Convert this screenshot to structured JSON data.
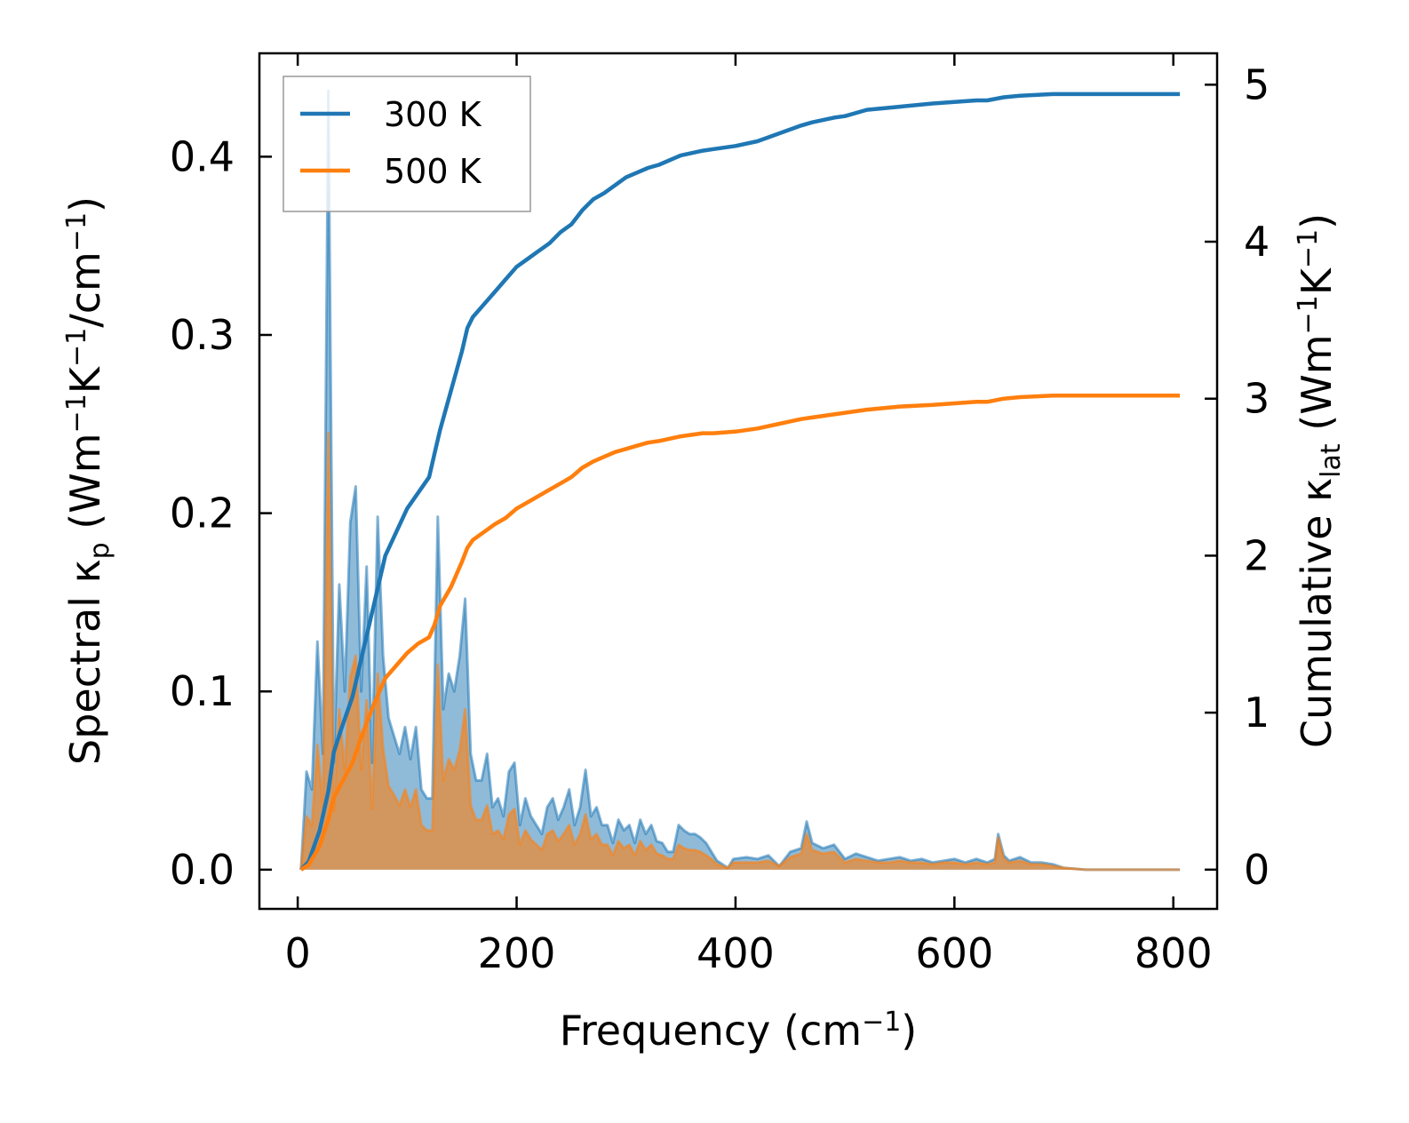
{
  "chart_data": {
    "type": "line",
    "title": "",
    "xlabel": {
      "main": "Frequency (cm",
      "sup": "−1",
      "tail": ")"
    },
    "ylabel_left": {
      "parts": [
        {
          "t": "Spectral κ"
        },
        {
          "t": "p",
          "sub": true
        },
        {
          "t": " (Wm"
        },
        {
          "t": "−1",
          "sup": true
        },
        {
          "t": "K"
        },
        {
          "t": "−1",
          "sup": true
        },
        {
          "t": "/cm"
        },
        {
          "t": "−1",
          "sup": true
        },
        {
          "t": ")"
        }
      ]
    },
    "ylabel_right": {
      "parts": [
        {
          "t": "Cumulative κ"
        },
        {
          "t": "lat",
          "sub": true
        },
        {
          "t": " (Wm"
        },
        {
          "t": "−1",
          "sup": true
        },
        {
          "t": "K"
        },
        {
          "t": "−1",
          "sup": true
        },
        {
          "t": ")"
        }
      ]
    },
    "xlim": [
      -35,
      840
    ],
    "ylim_left": [
      -0.022,
      0.458
    ],
    "ylim_right": [
      -0.25,
      5.2
    ],
    "xticks": [
      0,
      200,
      400,
      600,
      800
    ],
    "xtick_labels": [
      "0",
      "200",
      "400",
      "600",
      "800"
    ],
    "yticks_left": [
      0.0,
      0.1,
      0.2,
      0.3,
      0.4
    ],
    "ytick_labels_left": [
      "0.0",
      "0.1",
      "0.2",
      "0.3",
      "0.4"
    ],
    "yticks_right": [
      0,
      1,
      2,
      3,
      4,
      5
    ],
    "ytick_labels_right": [
      "0",
      "1",
      "2",
      "3",
      "4",
      "5"
    ],
    "legend": {
      "position": "top-left",
      "entries": [
        "300 K",
        "500 K"
      ]
    },
    "colors": {
      "s300": "#1f77b4",
      "s500": "#ff7f0e"
    },
    "series": [
      {
        "name": "300 K",
        "spectral": {
          "x": [
            3,
            8,
            13,
            18,
            23,
            28,
            33,
            38,
            43,
            48,
            53,
            58,
            63,
            68,
            73,
            78,
            83,
            88,
            93,
            98,
            103,
            108,
            113,
            118,
            123,
            128,
            133,
            138,
            143,
            148,
            153,
            158,
            163,
            168,
            173,
            178,
            183,
            188,
            193,
            198,
            203,
            208,
            213,
            218,
            223,
            228,
            233,
            238,
            243,
            248,
            253,
            258,
            263,
            268,
            273,
            278,
            283,
            288,
            293,
            298,
            303,
            308,
            313,
            318,
            323,
            328,
            333,
            338,
            343,
            348,
            353,
            358,
            363,
            368,
            373,
            378,
            383,
            388,
            393,
            398,
            410,
            420,
            430,
            440,
            450,
            460,
            465,
            470,
            480,
            490,
            500,
            510,
            520,
            530,
            540,
            550,
            560,
            570,
            580,
            590,
            600,
            610,
            620,
            630,
            637,
            640,
            645,
            650,
            660,
            670,
            680,
            690,
            700,
            720,
            750,
            780,
            806
          ],
          "y": [
            0.0,
            0.055,
            0.045,
            0.128,
            0.065,
            0.437,
            0.06,
            0.16,
            0.1,
            0.195,
            0.215,
            0.1,
            0.17,
            0.06,
            0.198,
            0.12,
            0.085,
            0.075,
            0.065,
            0.08,
            0.062,
            0.08,
            0.045,
            0.04,
            0.04,
            0.198,
            0.09,
            0.11,
            0.1,
            0.12,
            0.152,
            0.065,
            0.05,
            0.05,
            0.065,
            0.035,
            0.04,
            0.03,
            0.055,
            0.06,
            0.025,
            0.04,
            0.03,
            0.025,
            0.02,
            0.035,
            0.04,
            0.028,
            0.035,
            0.045,
            0.025,
            0.035,
            0.056,
            0.03,
            0.035,
            0.025,
            0.025,
            0.015,
            0.028,
            0.022,
            0.025,
            0.015,
            0.028,
            0.02,
            0.025,
            0.016,
            0.015,
            0.01,
            0.01,
            0.025,
            0.022,
            0.02,
            0.02,
            0.018,
            0.015,
            0.01,
            0.005,
            0.003,
            0.001,
            0.006,
            0.007,
            0.006,
            0.008,
            0.002,
            0.01,
            0.012,
            0.027,
            0.015,
            0.012,
            0.014,
            0.006,
            0.009,
            0.007,
            0.005,
            0.006,
            0.007,
            0.005,
            0.006,
            0.004,
            0.005,
            0.006,
            0.004,
            0.006,
            0.004,
            0.006,
            0.02,
            0.008,
            0.005,
            0.007,
            0.004,
            0.004,
            0.003,
            0.001,
            0.0,
            0.0,
            0.0,
            0.0
          ]
        },
        "cumulative": {
          "x": [
            3,
            10,
            20,
            28,
            33,
            40,
            50,
            60,
            70,
            80,
            90,
            100,
            110,
            120,
            125,
            130,
            140,
            150,
            155,
            160,
            170,
            180,
            190,
            200,
            210,
            220,
            230,
            240,
            250,
            260,
            270,
            280,
            290,
            300,
            310,
            320,
            330,
            350,
            370,
            380,
            400,
            420,
            440,
            460,
            470,
            490,
            500,
            520,
            550,
            580,
            600,
            620,
            630,
            645,
            660,
            690,
            700,
            806
          ],
          "y": [
            0.0,
            0.05,
            0.25,
            0.5,
            0.75,
            0.9,
            1.1,
            1.4,
            1.7,
            2.0,
            2.15,
            2.3,
            2.4,
            2.5,
            2.65,
            2.8,
            3.05,
            3.3,
            3.45,
            3.52,
            3.6,
            3.68,
            3.76,
            3.84,
            3.89,
            3.94,
            3.99,
            4.06,
            4.11,
            4.2,
            4.27,
            4.31,
            4.36,
            4.41,
            4.44,
            4.47,
            4.49,
            4.55,
            4.58,
            4.59,
            4.61,
            4.64,
            4.69,
            4.74,
            4.76,
            4.79,
            4.8,
            4.84,
            4.86,
            4.88,
            4.89,
            4.9,
            4.9,
            4.92,
            4.93,
            4.94,
            4.94,
            4.94
          ]
        }
      },
      {
        "name": "500 K",
        "spectral": {
          "x": [
            3,
            8,
            13,
            18,
            23,
            28,
            33,
            38,
            43,
            48,
            53,
            58,
            63,
            68,
            73,
            78,
            83,
            88,
            93,
            98,
            103,
            108,
            113,
            118,
            123,
            128,
            133,
            138,
            143,
            148,
            153,
            158,
            163,
            168,
            173,
            178,
            183,
            188,
            193,
            198,
            203,
            208,
            213,
            218,
            223,
            228,
            233,
            238,
            243,
            248,
            253,
            258,
            263,
            268,
            273,
            278,
            283,
            288,
            293,
            298,
            303,
            308,
            313,
            318,
            323,
            328,
            333,
            338,
            343,
            348,
            353,
            358,
            363,
            368,
            373,
            378,
            383,
            388,
            393,
            398,
            410,
            420,
            430,
            440,
            450,
            460,
            465,
            470,
            480,
            490,
            500,
            510,
            520,
            530,
            540,
            550,
            560,
            570,
            580,
            590,
            600,
            610,
            620,
            630,
            637,
            640,
            645,
            650,
            660,
            670,
            680,
            690,
            700,
            720,
            750,
            780,
            806
          ],
          "y": [
            0.0,
            0.03,
            0.025,
            0.07,
            0.035,
            0.245,
            0.033,
            0.09,
            0.056,
            0.108,
            0.12,
            0.056,
            0.095,
            0.034,
            0.11,
            0.068,
            0.047,
            0.042,
            0.036,
            0.045,
            0.035,
            0.045,
            0.025,
            0.022,
            0.022,
            0.115,
            0.05,
            0.062,
            0.056,
            0.067,
            0.09,
            0.036,
            0.028,
            0.028,
            0.036,
            0.02,
            0.022,
            0.017,
            0.031,
            0.034,
            0.014,
            0.022,
            0.017,
            0.014,
            0.011,
            0.02,
            0.022,
            0.016,
            0.02,
            0.025,
            0.014,
            0.02,
            0.031,
            0.017,
            0.02,
            0.014,
            0.014,
            0.008,
            0.016,
            0.012,
            0.014,
            0.008,
            0.016,
            0.011,
            0.014,
            0.009,
            0.008,
            0.006,
            0.006,
            0.014,
            0.012,
            0.011,
            0.011,
            0.01,
            0.008,
            0.006,
            0.003,
            0.002,
            0.001,
            0.004,
            0.004,
            0.004,
            0.005,
            0.002,
            0.007,
            0.009,
            0.02,
            0.011,
            0.009,
            0.01,
            0.004,
            0.006,
            0.005,
            0.004,
            0.004,
            0.005,
            0.004,
            0.004,
            0.003,
            0.004,
            0.004,
            0.003,
            0.004,
            0.003,
            0.004,
            0.018,
            0.006,
            0.004,
            0.005,
            0.003,
            0.003,
            0.002,
            0.001,
            0.0,
            0.0,
            0.0,
            0.0
          ]
        },
        "cumulative": {
          "x": [
            3,
            10,
            20,
            28,
            33,
            40,
            50,
            60,
            70,
            80,
            90,
            100,
            110,
            120,
            125,
            130,
            140,
            150,
            155,
            160,
            170,
            180,
            190,
            200,
            210,
            220,
            230,
            240,
            250,
            260,
            270,
            280,
            290,
            300,
            310,
            320,
            330,
            350,
            370,
            380,
            400,
            420,
            440,
            460,
            470,
            490,
            500,
            520,
            550,
            580,
            600,
            620,
            630,
            645,
            660,
            690,
            700,
            806
          ],
          "y": [
            0.0,
            0.03,
            0.15,
            0.32,
            0.46,
            0.55,
            0.68,
            0.88,
            1.06,
            1.22,
            1.3,
            1.38,
            1.44,
            1.48,
            1.56,
            1.68,
            1.8,
            1.96,
            2.05,
            2.1,
            2.15,
            2.2,
            2.24,
            2.3,
            2.34,
            2.38,
            2.42,
            2.46,
            2.5,
            2.56,
            2.6,
            2.63,
            2.66,
            2.68,
            2.7,
            2.72,
            2.73,
            2.76,
            2.78,
            2.78,
            2.79,
            2.81,
            2.84,
            2.87,
            2.88,
            2.9,
            2.91,
            2.93,
            2.95,
            2.96,
            2.97,
            2.98,
            2.98,
            3.0,
            3.01,
            3.02,
            3.02,
            3.02
          ]
        }
      }
    ]
  }
}
